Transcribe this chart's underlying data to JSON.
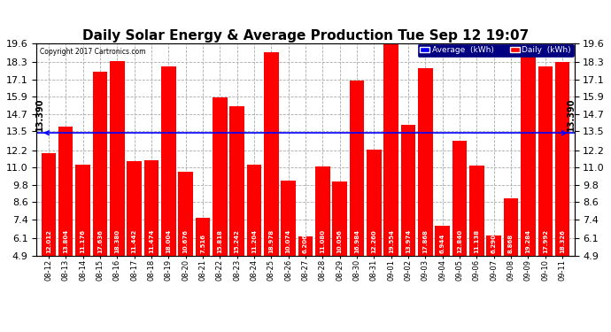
{
  "title": "Daily Solar Energy & Average Production Tue Sep 12 19:07",
  "copyright": "Copyright 2017 Cartronics.com",
  "average_value": 13.39,
  "categories": [
    "08-12",
    "08-13",
    "08-14",
    "08-15",
    "08-16",
    "08-17",
    "08-18",
    "08-19",
    "08-20",
    "08-21",
    "08-22",
    "08-23",
    "08-24",
    "08-25",
    "08-26",
    "08-27",
    "08-28",
    "08-29",
    "08-30",
    "08-31",
    "09-01",
    "09-02",
    "09-03",
    "09-04",
    "09-05",
    "09-06",
    "09-07",
    "09-08",
    "09-09",
    "09-10",
    "09-11"
  ],
  "values": [
    12.012,
    13.804,
    11.176,
    17.636,
    18.38,
    11.442,
    11.474,
    18.004,
    10.676,
    7.516,
    15.818,
    15.242,
    11.204,
    18.978,
    10.074,
    6.206,
    11.08,
    10.056,
    16.984,
    12.26,
    19.554,
    13.974,
    17.868,
    6.944,
    12.84,
    11.138,
    6.29,
    8.868,
    19.284,
    17.992,
    18.326
  ],
  "bar_color": "#ff0000",
  "average_line_color": "#0000ff",
  "ylim_min": 4.9,
  "ylim_max": 19.6,
  "yticks": [
    4.9,
    6.1,
    7.4,
    8.6,
    9.8,
    11.0,
    12.2,
    13.5,
    14.7,
    15.9,
    17.1,
    18.3,
    19.6
  ],
  "grid_color": "#aaaaaa",
  "background_color": "#ffffff",
  "plot_bg_color": "#ffffff",
  "legend_avg_color": "#0000ff",
  "legend_daily_color": "#ff0000",
  "avg_label": "13.390",
  "title_fontsize": 11,
  "bar_label_fontsize": 5,
  "ytick_fontsize": 8
}
